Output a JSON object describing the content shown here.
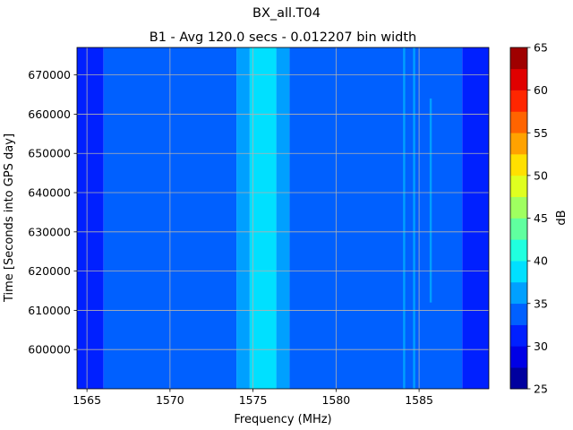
{
  "chart_data": {
    "type": "heatmap",
    "title": "BX_all.T04",
    "subtitle": "B1 - Avg 120.0 secs - 0.012207 bin width",
    "xlabel": "Frequency (MHz)",
    "ylabel": "Time [Seconds into GPS day]",
    "xlim": [
      1564.4,
      1589.2
    ],
    "ylim": [
      590000,
      677000
    ],
    "xticks": [
      1565,
      1570,
      1575,
      1580,
      1585
    ],
    "yticks": [
      600000,
      610000,
      620000,
      630000,
      640000,
      650000,
      660000,
      670000
    ],
    "grid": true,
    "colorbar": {
      "label": "dB",
      "levels": [
        25,
        27.5,
        30,
        32.5,
        35,
        37.5,
        40,
        42.5,
        45,
        47.5,
        50,
        52.5,
        55,
        57.5,
        60,
        62.5,
        65
      ],
      "ticks": [
        25,
        30,
        35,
        40,
        45,
        50,
        55,
        60,
        65
      ],
      "colors": [
        "#00009f",
        "#0000e6",
        "#0020ff",
        "#0060ff",
        "#00a0ff",
        "#00e0ff",
        "#20ffdf",
        "#60ff9f",
        "#9fff60",
        "#dfff20",
        "#ffe000",
        "#ffa200",
        "#ff6400",
        "#ff2600",
        "#e00000",
        "#9f0000"
      ]
    },
    "frequency_bands": [
      {
        "from": 1564.4,
        "to": 1566.0,
        "dB": 31.5
      },
      {
        "from": 1566.0,
        "to": 1574.0,
        "dB": 33.5
      },
      {
        "from": 1574.0,
        "to": 1574.8,
        "dB": 36.0
      },
      {
        "from": 1574.8,
        "to": 1576.4,
        "dB": 38.5
      },
      {
        "from": 1576.4,
        "to": 1577.2,
        "dB": 36.0
      },
      {
        "from": 1577.2,
        "to": 1587.6,
        "dB": 33.5
      },
      {
        "from": 1587.6,
        "to": 1589.2,
        "dB": 31.5
      }
    ],
    "narrow_features": [
      {
        "freq": 1565.3,
        "dB": 31.5,
        "t_from": 590000,
        "t_to": 677000
      },
      {
        "freq": 1584.1,
        "dB": 36.0,
        "t_from": 590000,
        "t_to": 677000
      },
      {
        "freq": 1584.7,
        "dB": 36.0,
        "t_from": 590000,
        "t_to": 677000
      },
      {
        "freq": 1585.7,
        "dB": 36.0,
        "t_from": 612000,
        "t_to": 664000
      }
    ]
  }
}
